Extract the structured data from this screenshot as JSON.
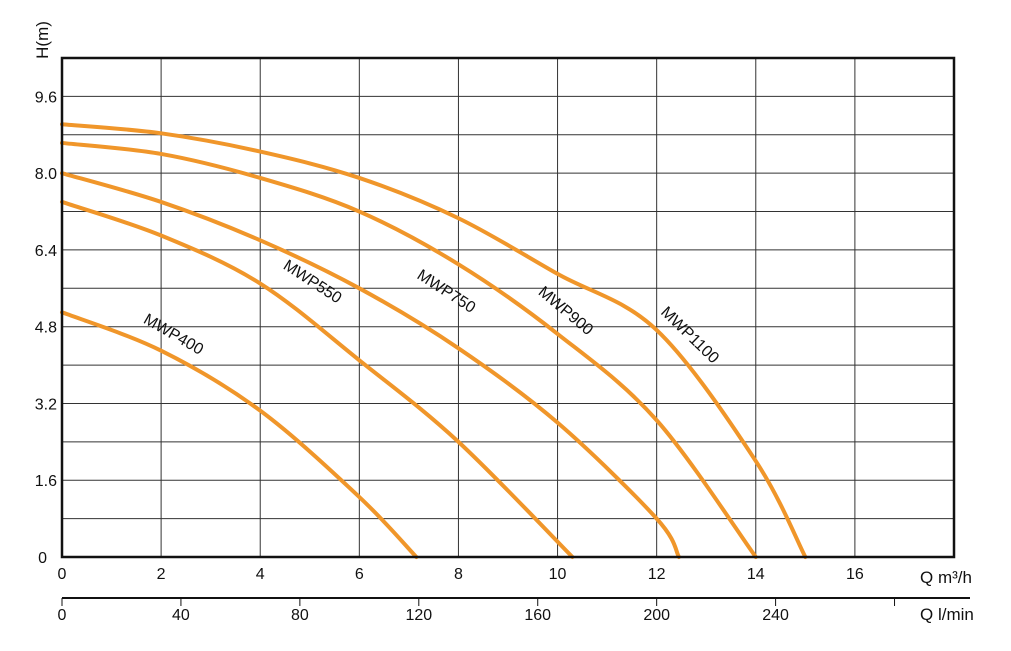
{
  "chart_data": {
    "type": "line",
    "ylabel": "H(m)",
    "xlabel": "Q m³/h",
    "xlabel_secondary": "Q l/min",
    "xlim": [
      0,
      18
    ],
    "ylim": [
      0,
      10.4
    ],
    "x_ticks": [
      "0",
      "2",
      "4",
      "6",
      "8",
      "10",
      "12",
      "14",
      "16"
    ],
    "y_ticks": [
      "0",
      "1.6",
      "3.2",
      "4.8",
      "6.4",
      "8.0",
      "9.6"
    ],
    "secondary_x_ticks": [
      "0",
      "40",
      "80",
      "120",
      "160",
      "200",
      "240"
    ],
    "grid": true,
    "line_color": "#F0962A",
    "series": [
      {
        "name": "MWP400",
        "x": [
          0,
          2,
          4,
          6,
          7.15
        ],
        "y": [
          5.1,
          4.3,
          3.05,
          1.25,
          0
        ]
      },
      {
        "name": "MWP550",
        "x": [
          0,
          2,
          4,
          6,
          8,
          10.3
        ],
        "y": [
          7.4,
          6.7,
          5.7,
          4.1,
          2.4,
          0
        ]
      },
      {
        "name": "MWP750",
        "x": [
          0,
          2,
          4,
          6,
          8,
          10,
          12,
          12.45
        ],
        "y": [
          8.0,
          7.4,
          6.6,
          5.6,
          4.35,
          2.8,
          0.8,
          0
        ]
      },
      {
        "name": "MWP900",
        "x": [
          0,
          2,
          4,
          6,
          8,
          10,
          12,
          14.0
        ],
        "y": [
          8.63,
          8.4,
          7.9,
          7.2,
          6.1,
          4.65,
          2.85,
          0
        ]
      },
      {
        "name": "MWP1100",
        "x": [
          0,
          2,
          4,
          6,
          8,
          10,
          12,
          14,
          15.0
        ],
        "y": [
          9.02,
          8.83,
          8.45,
          7.9,
          7.06,
          5.9,
          4.73,
          2.0,
          0
        ]
      }
    ]
  }
}
